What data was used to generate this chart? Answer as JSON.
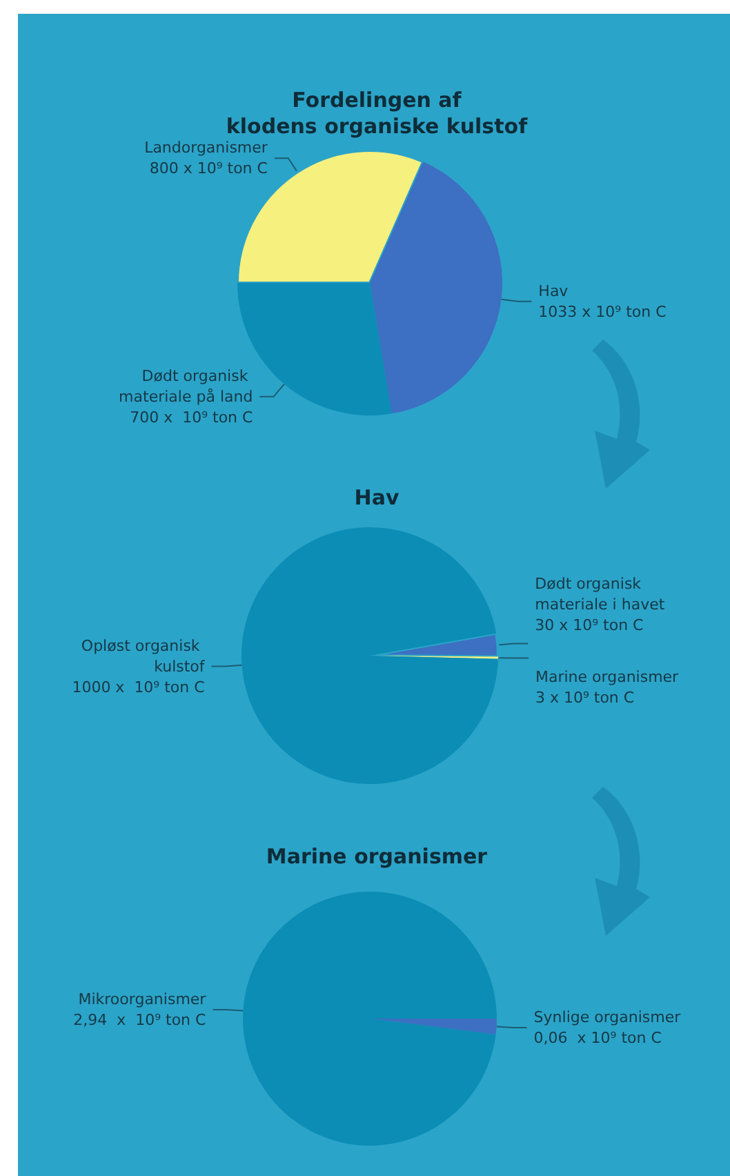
{
  "chart_data": [
    {
      "type": "pie",
      "title": "Fordelingen af\nklodens organiske kulstof",
      "categories": [
        "Landorganismer",
        "Hav",
        "Dødt organisk materiale på land"
      ],
      "values": [
        800,
        1033,
        700
      ],
      "colors": [
        "#f6f07e",
        "#3d6fc2",
        "#0b8db5"
      ],
      "value_labels": [
        "800 x 10⁹ ton C",
        "1033 x 10⁹ ton C",
        "700 x  10⁹ ton C"
      ]
    },
    {
      "type": "pie",
      "title": "Hav",
      "categories": [
        "Dødt organisk materiale i havet",
        "Marine organismer",
        "Opløst organisk kulstof"
      ],
      "values": [
        30,
        3,
        1000
      ],
      "colors": [
        "#3d6fc2",
        "#f6f07e",
        "#0b8db5"
      ],
      "value_labels": [
        "30 x 10⁹ ton C",
        "3 x 10⁹ ton C",
        "1000 x  10⁹ ton C"
      ]
    },
    {
      "type": "pie",
      "title": "Marine organismer",
      "categories": [
        "Synlige organismer",
        "Mikroorganismer"
      ],
      "values": [
        0.06,
        2.94
      ],
      "colors": [
        "#3d6fc2",
        "#0b8db5"
      ],
      "value_labels": [
        "0,06  x 10⁹ ton C",
        "2,94  x  10⁹ ton C"
      ]
    }
  ]
}
